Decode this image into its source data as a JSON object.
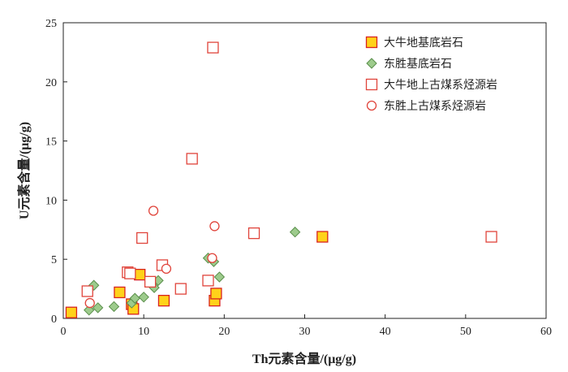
{
  "chart_data": {
    "type": "scatter",
    "xlabel": "Th元素含量/(μg/g)",
    "ylabel": "U元素含量/(μg/g)",
    "xlim": [
      0,
      60
    ],
    "ylim": [
      0,
      25
    ],
    "xticks": [
      0,
      10,
      20,
      30,
      40,
      50,
      60
    ],
    "yticks": [
      0,
      5,
      10,
      15,
      20,
      25
    ],
    "grid": false,
    "legend_position": "top-right",
    "series": [
      {
        "name": "大牛地基底岩石",
        "marker": "square-filled",
        "fill": "#ffd21a",
        "stroke": "#d8231f",
        "points": [
          [
            1.0,
            0.5
          ],
          [
            7.0,
            2.2
          ],
          [
            8.5,
            1.2
          ],
          [
            8.7,
            0.8
          ],
          [
            9.5,
            3.7
          ],
          [
            12.5,
            1.5
          ],
          [
            18.8,
            1.5
          ],
          [
            19.0,
            2.1
          ],
          [
            32.2,
            6.9
          ]
        ]
      },
      {
        "name": "东胜基底岩石",
        "marker": "diamond",
        "fill": "#9dcb8c",
        "stroke": "#5a8f4b",
        "points": [
          [
            3.2,
            0.7
          ],
          [
            3.8,
            2.8
          ],
          [
            4.3,
            0.9
          ],
          [
            6.3,
            1.0
          ],
          [
            8.5,
            1.3
          ],
          [
            8.9,
            1.7
          ],
          [
            10.0,
            1.8
          ],
          [
            11.3,
            2.6
          ],
          [
            11.8,
            3.2
          ],
          [
            18.0,
            5.1
          ],
          [
            18.7,
            4.8
          ],
          [
            19.4,
            3.5
          ],
          [
            28.8,
            7.3
          ]
        ]
      },
      {
        "name": "大牛地上古煤系烃源岩",
        "marker": "square-open",
        "fill": "#ffffff",
        "stroke": "#e0443b",
        "points": [
          [
            3.0,
            2.3
          ],
          [
            8.0,
            3.9
          ],
          [
            8.3,
            3.8
          ],
          [
            9.8,
            6.8
          ],
          [
            10.8,
            3.1
          ],
          [
            12.3,
            4.5
          ],
          [
            14.6,
            2.5
          ],
          [
            16.0,
            13.5
          ],
          [
            18.0,
            3.2
          ],
          [
            18.6,
            22.9
          ],
          [
            23.7,
            7.2
          ],
          [
            53.2,
            6.9
          ]
        ]
      },
      {
        "name": "东胜上古煤系烃源岩",
        "marker": "circle-open",
        "fill": "#ffffff",
        "stroke": "#e0443b",
        "points": [
          [
            3.3,
            1.3
          ],
          [
            11.2,
            9.1
          ],
          [
            12.8,
            4.2
          ],
          [
            18.5,
            5.1
          ],
          [
            18.8,
            7.8
          ]
        ]
      }
    ]
  }
}
